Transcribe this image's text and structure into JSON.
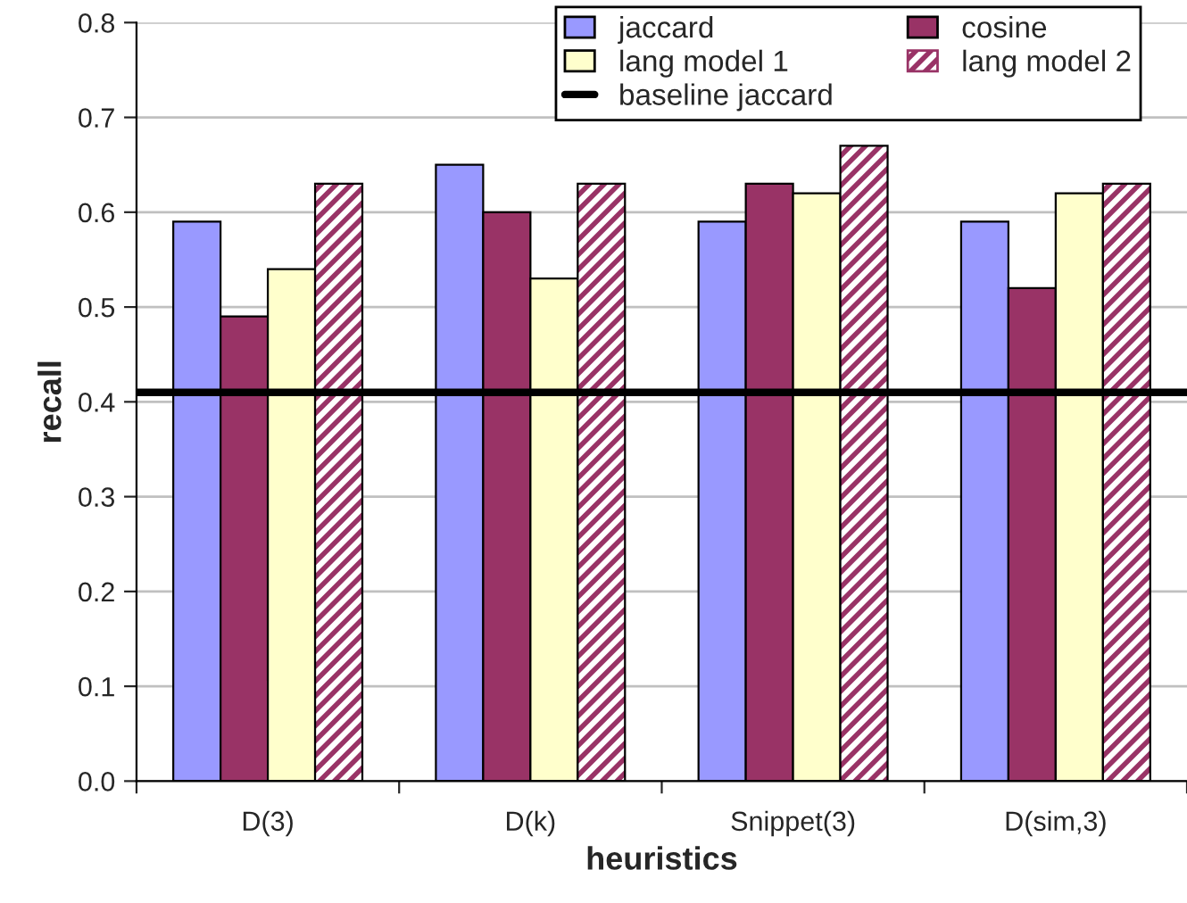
{
  "chart_data": {
    "type": "bar",
    "xlabel": "heuristics",
    "ylabel": "recall",
    "categories": [
      "D(3)",
      "D(k)",
      "Snippet(3)",
      "D(sim,3)"
    ],
    "series": [
      {
        "name": "jaccard",
        "color": "#9999ff",
        "values": [
          0.59,
          0.65,
          0.59,
          0.59
        ]
      },
      {
        "name": "cosine",
        "color": "#993366",
        "values": [
          0.49,
          0.6,
          0.63,
          0.52
        ]
      },
      {
        "name": "lang model 1",
        "color": "#ffffcc",
        "values": [
          0.54,
          0.53,
          0.62,
          0.62
        ]
      },
      {
        "name": "lang model 2",
        "color": "#993366",
        "values": [
          0.63,
          0.63,
          0.67,
          0.63
        ]
      }
    ],
    "ref_lines": [
      {
        "axis": "y",
        "value": 0.41,
        "label": "baseline jaccard",
        "color": "#000000",
        "line_style": "solid"
      }
    ],
    "ylim": [
      0,
      0.8
    ],
    "yticks": [
      {
        "value": 0,
        "label": "0.0"
      },
      {
        "value": 0.1,
        "label": "0.1"
      },
      {
        "value": 0.2,
        "label": "0.2"
      },
      {
        "value": 0.3,
        "label": "0.3"
      },
      {
        "value": 0.4,
        "label": "0.4"
      },
      {
        "value": 0.5,
        "label": "0.5"
      },
      {
        "value": 0.6,
        "label": "0.6"
      },
      {
        "value": 0.7,
        "label": "0.7"
      },
      {
        "value": 0.8,
        "label": "0.8"
      }
    ],
    "grid": "y",
    "legend": "top right"
  }
}
